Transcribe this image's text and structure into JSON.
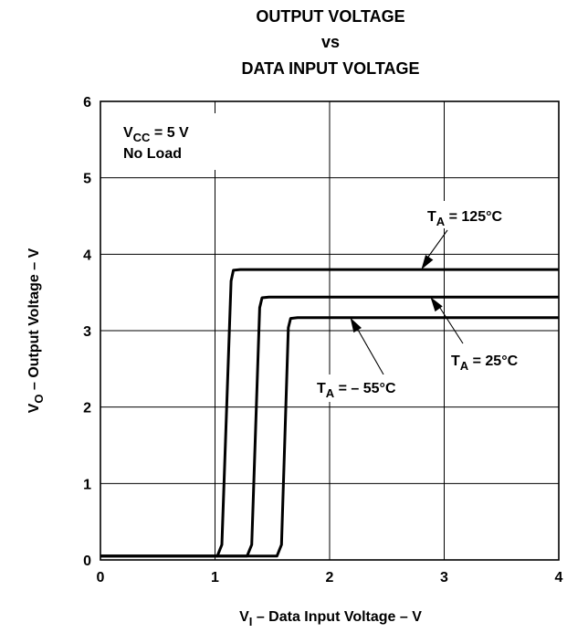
{
  "chart_data": {
    "type": "line",
    "title_lines": [
      "OUTPUT VOLTAGE",
      "vs",
      "DATA INPUT VOLTAGE"
    ],
    "xlabel": {
      "main": "V",
      "sub": "I",
      "rest": " – Data Input Voltage – V"
    },
    "ylabel": {
      "main": "V",
      "sub": "O",
      "rest": " – Output Voltage – V"
    },
    "xlim": [
      0,
      4
    ],
    "ylim": [
      0,
      6
    ],
    "xticks": [
      "0",
      "1",
      "2",
      "3",
      "4"
    ],
    "yticks": [
      "0",
      "1",
      "2",
      "3",
      "4",
      "5",
      "6"
    ],
    "grid": true,
    "conditions": {
      "line1": {
        "main": "V",
        "sub": "CC",
        "rest": " = 5 V"
      },
      "line2": "No Load"
    },
    "series": [
      {
        "name": "T_A = 125°C",
        "label": {
          "main": "T",
          "sub": "A",
          "rest": " = 125°C"
        },
        "points": [
          [
            0,
            0.05
          ],
          [
            1.02,
            0.05
          ],
          [
            1.06,
            0.2
          ],
          [
            1.14,
            3.65
          ],
          [
            1.16,
            3.79
          ],
          [
            1.22,
            3.8
          ],
          [
            4,
            3.8
          ]
        ]
      },
      {
        "name": "T_A = 25°C",
        "label": {
          "main": "T",
          "sub": "A",
          "rest": " = 25°C"
        },
        "points": [
          [
            0,
            0.05
          ],
          [
            1.28,
            0.05
          ],
          [
            1.32,
            0.2
          ],
          [
            1.39,
            3.3
          ],
          [
            1.41,
            3.43
          ],
          [
            1.47,
            3.44
          ],
          [
            4,
            3.44
          ]
        ]
      },
      {
        "name": "T_A = – 55°C",
        "label": {
          "main": "T",
          "sub": "A",
          "rest": " = – 55°C"
        },
        "points": [
          [
            0,
            0.05
          ],
          [
            1.54,
            0.05
          ],
          [
            1.58,
            0.2
          ],
          [
            1.64,
            3.04
          ],
          [
            1.66,
            3.16
          ],
          [
            1.72,
            3.17
          ],
          [
            4,
            3.17
          ]
        ]
      }
    ],
    "annotation_arrow_targets": [
      [
        2.8,
        3.8
      ],
      [
        2.88,
        3.44
      ],
      [
        2.18,
        3.17
      ]
    ]
  }
}
